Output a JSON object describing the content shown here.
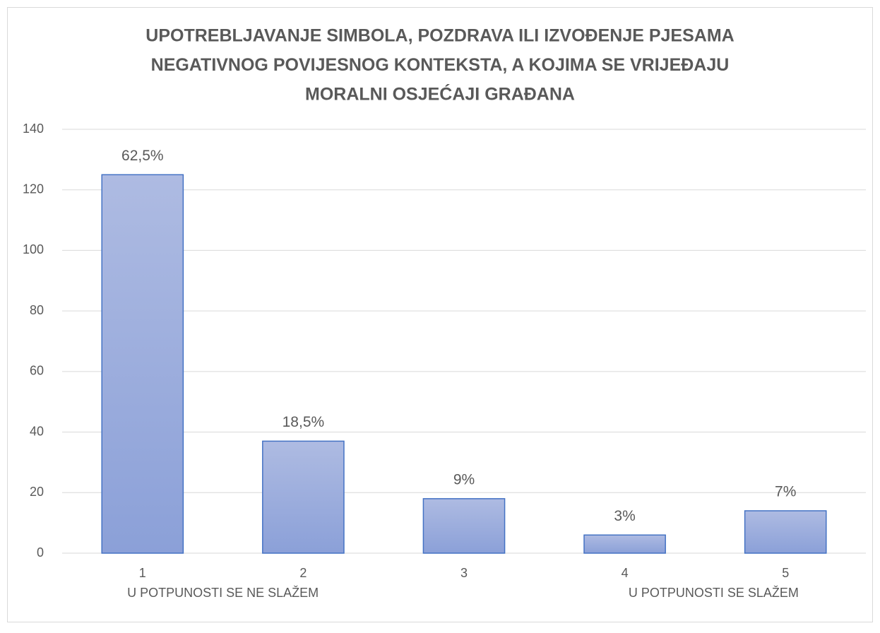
{
  "chart_data": {
    "type": "bar",
    "title": [
      "UPOTREBLJAVANJE SIMBOLA, POZDRAVA ILI IZVOĐENJE PJESAMA",
      "NEGATIVNOG POVIJESNOG KONTEKSTA, A KOJIMA SE VRIJEĐAJU",
      "MORALNI OSJEĆAJI GRAĐANA"
    ],
    "categories": [
      "1",
      "2",
      "3",
      "4",
      "5"
    ],
    "values": [
      125,
      37,
      18,
      6,
      14
    ],
    "value_labels": [
      "62,5%",
      "18,5%",
      "9%",
      "3%",
      "7%"
    ],
    "annotations": [
      "U POTPUNOSTI SE NE SLAŽEM",
      "U POTPUNOSTI SE SLAŽEM"
    ],
    "color": "#4472c4",
    "ylim": [
      0,
      140
    ],
    "yticks": [
      0,
      20,
      40,
      60,
      80,
      100,
      120,
      140
    ],
    "grid": true
  }
}
